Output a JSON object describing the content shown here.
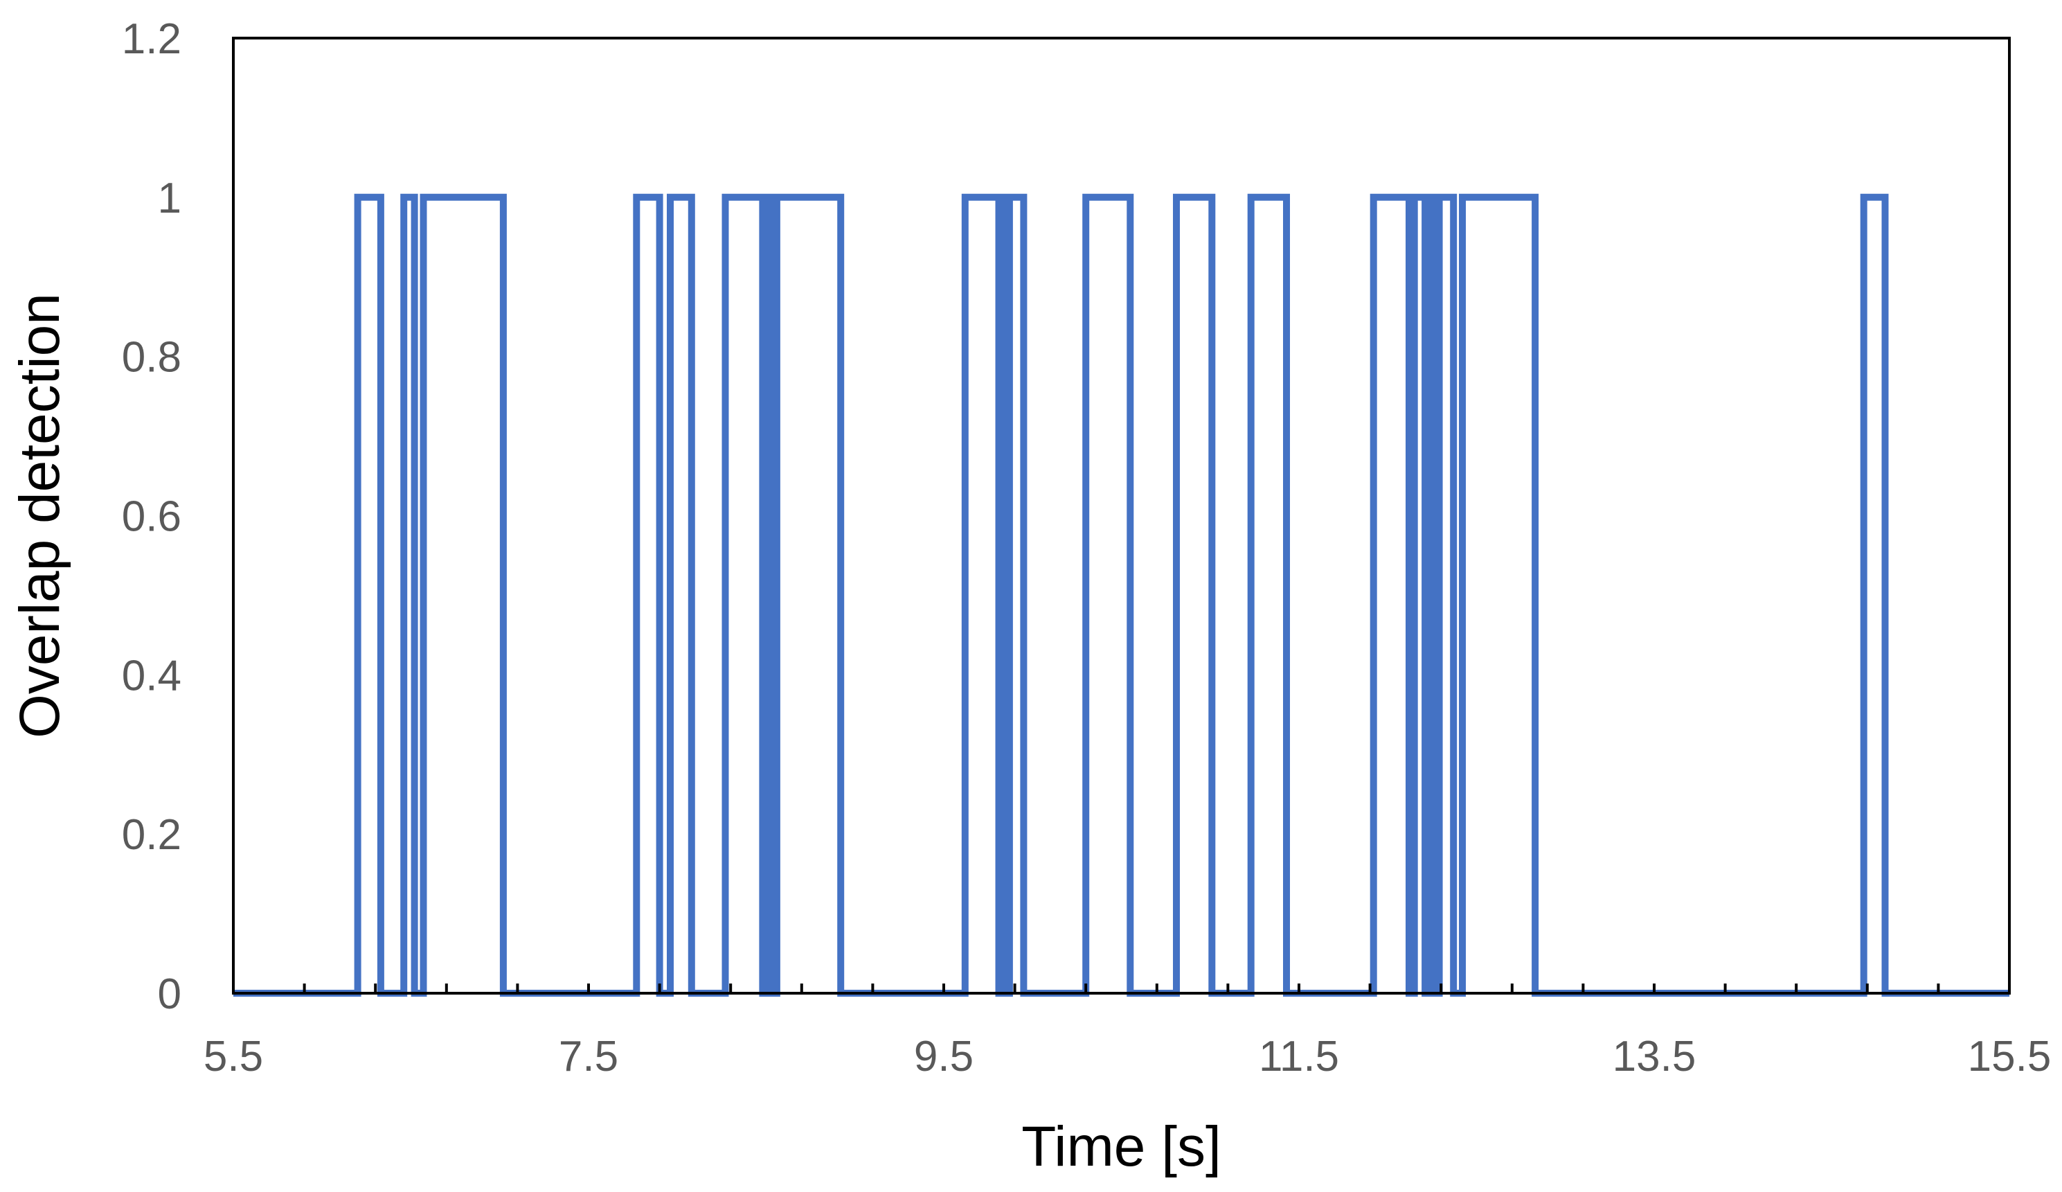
{
  "chart_data": {
    "type": "line",
    "step": true,
    "title": "",
    "xlabel": "Time [s]",
    "ylabel": "Overlap detection",
    "xlim": [
      5.5,
      15.5
    ],
    "ylim": [
      0,
      1.2
    ],
    "x_ticks": [
      "5.5",
      "7.5",
      "9.5",
      "11.5",
      "13.5",
      "15.5"
    ],
    "y_ticks": [
      "0",
      "0.2",
      "0.4",
      "0.6",
      "0.8",
      "1",
      "1.2"
    ],
    "x_tick_values": [
      5.5,
      7.5,
      9.5,
      11.5,
      13.5,
      15.5
    ],
    "y_tick_values": [
      0,
      0.2,
      0.4,
      0.6,
      0.8,
      1,
      1.2
    ],
    "x_minor_tick_step": 0.4,
    "grid": false,
    "legend": "none",
    "line_color": "#4472C4",
    "series": [
      {
        "intervals_at_1": [
          [
            6.2,
            6.33
          ],
          [
            6.46,
            6.52
          ],
          [
            6.57,
            7.02
          ],
          [
            7.77,
            7.9
          ],
          [
            7.96,
            8.08
          ],
          [
            8.27,
            8.48
          ],
          [
            8.5,
            8.53
          ],
          [
            8.56,
            8.92
          ],
          [
            9.62,
            9.81
          ],
          [
            9.82,
            9.84
          ],
          [
            9.87,
            9.95
          ],
          [
            10.3,
            10.55
          ],
          [
            10.81,
            11.01
          ],
          [
            11.23,
            11.43
          ],
          [
            11.92,
            12.12
          ],
          [
            12.15,
            12.21
          ],
          [
            12.24,
            12.26
          ],
          [
            12.29,
            12.37
          ],
          [
            12.42,
            12.83
          ],
          [
            14.68,
            14.8
          ]
        ]
      }
    ]
  }
}
